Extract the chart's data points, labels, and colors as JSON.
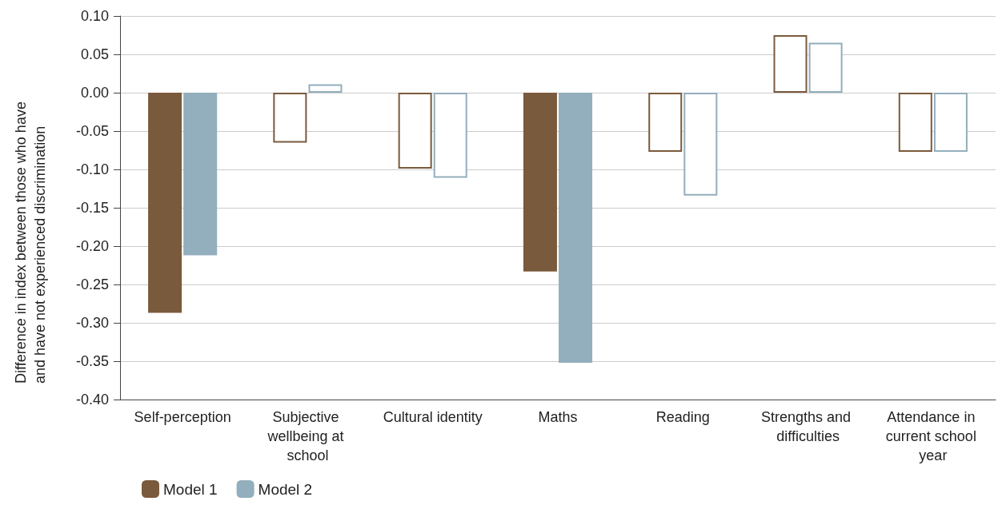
{
  "chart_data": {
    "type": "bar",
    "ylabel": "Difference in index between those who have and have not experienced discrimination",
    "categories": [
      "Self-perception",
      "Subjective wellbeing at school",
      "Cultural identity",
      "Maths",
      "Reading",
      "Strengths and difficulties",
      "Attendance in current school year"
    ],
    "series": [
      {
        "name": "Model 1",
        "color": "#7a5a3c",
        "values": [
          -0.287,
          -0.065,
          -0.099,
          -0.233,
          -0.077,
          0.075,
          -0.077
        ],
        "colors": [
          "#7a5a3c",
          "#ffffff",
          "#ffffff",
          "#7a5a3c",
          "#ffffff",
          "#ffffff",
          "#ffffff"
        ]
      },
      {
        "name": "Model 2",
        "color": "#93aebd",
        "values": [
          -0.212,
          0.011,
          -0.111,
          -0.352,
          -0.134,
          0.065,
          -0.077
        ],
        "colors": [
          "#93aebd",
          "#ffffff",
          "#ffffff",
          "#93aebd",
          "#ffffff",
          "#ffffff",
          "#ffffff"
        ]
      }
    ],
    "ylim": [
      -0.4,
      0.1
    ],
    "yticks": [
      {
        "value": -0.4,
        "label": "-0.40"
      },
      {
        "value": -0.35,
        "label": "-0.35"
      },
      {
        "value": -0.3,
        "label": "-0.30"
      },
      {
        "value": -0.25,
        "label": "-0.25"
      },
      {
        "value": -0.2,
        "label": "-0.20"
      },
      {
        "value": -0.15,
        "label": "-0.15"
      },
      {
        "value": -0.1,
        "label": "-0.10"
      },
      {
        "value": -0.05,
        "label": "-0.05"
      },
      {
        "value": 0,
        "label": "0.00"
      },
      {
        "value": 0.05,
        "label": "0.05"
      },
      {
        "value": 0.1,
        "label": "0.10"
      }
    ],
    "grid": "y",
    "legend": "bottom left"
  }
}
